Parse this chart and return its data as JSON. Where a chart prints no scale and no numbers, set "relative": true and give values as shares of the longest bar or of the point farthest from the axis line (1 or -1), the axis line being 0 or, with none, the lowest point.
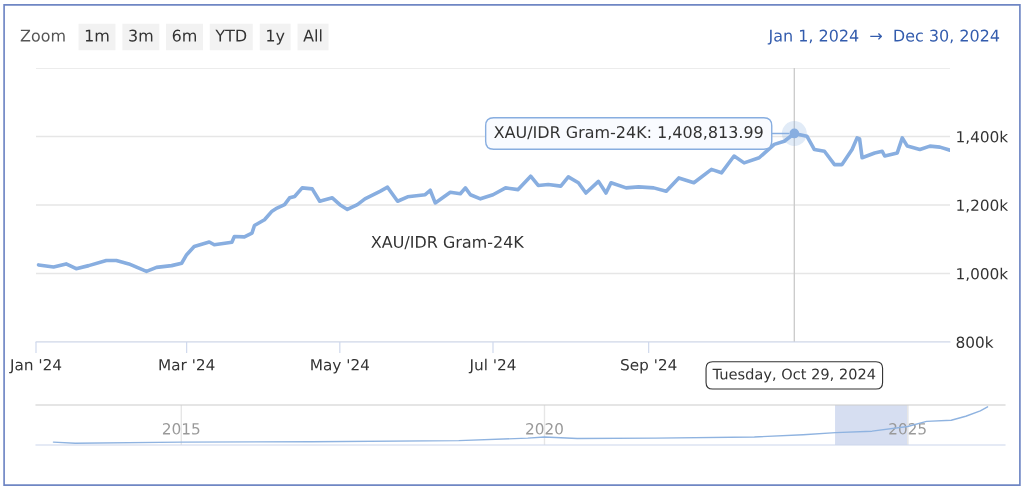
{
  "chart_data": [
    {
      "type": "line",
      "annotations": [
        "Zoom",
        "1m",
        "3m",
        "6m",
        "YTD",
        "1y",
        "All",
        "Jan 1, 2024  →  Dec 30, 2024",
        {
          "text": "XAU/IDR Gram-24K: 1,408,813.99",
          "x": "2024-10-29",
          "y": 1408813.99
        }
      ],
      "x": [
        "2024-01-02",
        "2024-01-08",
        "2024-01-13",
        "2024-01-17",
        "2024-01-22",
        "2024-01-29",
        "2024-02-02",
        "2024-02-07",
        "2024-02-14",
        "2024-02-18",
        "2024-02-24",
        "2024-02-28",
        "2024-03-01",
        "2024-03-04",
        "2024-03-10",
        "2024-03-12",
        "2024-03-19",
        "2024-03-20",
        "2024-03-24",
        "2024-03-27",
        "2024-03-28",
        "2024-04-01",
        "2024-04-04",
        "2024-04-06",
        "2024-04-09",
        "2024-04-11",
        "2024-04-13",
        "2024-04-16",
        "2024-04-20",
        "2024-04-23",
        "2024-04-28",
        "2024-05-01",
        "2024-05-04",
        "2024-05-08",
        "2024-05-11",
        "2024-05-17",
        "2024-05-20",
        "2024-05-24",
        "2024-05-28",
        "2024-06-04",
        "2024-06-06",
        "2024-06-08",
        "2024-06-14",
        "2024-06-18",
        "2024-06-20",
        "2024-06-22",
        "2024-06-26",
        "2024-07-01",
        "2024-07-06",
        "2024-07-11",
        "2024-07-16",
        "2024-07-19",
        "2024-07-23",
        "2024-07-28",
        "2024-07-31",
        "2024-08-04",
        "2024-08-07",
        "2024-08-12",
        "2024-08-15",
        "2024-08-17",
        "2024-08-23",
        "2024-08-28",
        "2024-09-03",
        "2024-09-08",
        "2024-09-13",
        "2024-09-19",
        "2024-09-26",
        "2024-09-30",
        "2024-10-05",
        "2024-10-09",
        "2024-10-15",
        "2024-10-21",
        "2024-10-25",
        "2024-10-29",
        "2024-11-03",
        "2024-11-06",
        "2024-11-10",
        "2024-11-14",
        "2024-11-17",
        "2024-11-21",
        "2024-11-23",
        "2024-11-24",
        "2024-11-25",
        "2024-11-30",
        "2024-12-03",
        "2024-12-04",
        "2024-12-09",
        "2024-12-11",
        "2024-12-13",
        "2024-12-18",
        "2024-12-22",
        "2024-12-26",
        "2024-12-30"
      ],
      "series": [
        {
          "name": "XAU/IDR Gram-24K",
          "color": "#88aee0",
          "values": [
            1025000,
            1019000,
            1028000,
            1014000,
            1023000,
            1038000,
            1038000,
            1028000,
            1006000,
            1018000,
            1023000,
            1030000,
            1055000,
            1079000,
            1092000,
            1084000,
            1091000,
            1108000,
            1107000,
            1118000,
            1140000,
            1157000,
            1182000,
            1191000,
            1201000,
            1221000,
            1225000,
            1250000,
            1247000,
            1211000,
            1221000,
            1201000,
            1187000,
            1201000,
            1218000,
            1240000,
            1252000,
            1211000,
            1224000,
            1230000,
            1243000,
            1206000,
            1237000,
            1233000,
            1250000,
            1230000,
            1218000,
            1230000,
            1250000,
            1245000,
            1284000,
            1257000,
            1260000,
            1255000,
            1282000,
            1265000,
            1235000,
            1269000,
            1235000,
            1265000,
            1250000,
            1253000,
            1250000,
            1240000,
            1279000,
            1265000,
            1304000,
            1294000,
            1343000,
            1323000,
            1338000,
            1377000,
            1386000,
            1408813.99,
            1401000,
            1362000,
            1357000,
            1318000,
            1318000,
            1362000,
            1396000,
            1393000,
            1338000,
            1352000,
            1357000,
            1343000,
            1352000,
            1396000,
            1372000,
            1362000,
            1372000,
            1369000,
            1360000
          ]
        }
      ],
      "xlim": [
        "2024-01-01",
        "2024-12-30"
      ],
      "xticks": [
        {
          "value": "2024-01-01",
          "label": "Jan '24"
        },
        {
          "value": "2024-03-01",
          "label": "Mar '24"
        },
        {
          "value": "2024-05-01",
          "label": "May '24"
        },
        {
          "value": "2024-07-01",
          "label": "Jul '24"
        },
        {
          "value": "2024-09-01",
          "label": "Sep '24"
        }
      ],
      "ylim": [
        800000,
        1600000
      ],
      "yticks": [
        {
          "value": 800000,
          "label": "800k"
        },
        {
          "value": 1000000,
          "label": "1,000k"
        },
        {
          "value": 1200000,
          "label": "1,200k"
        },
        {
          "value": 1400000,
          "label": "1,400k"
        },
        {
          "value": 1600000,
          "label": null
        }
      ],
      "ref_lines": [
        {
          "axis": "x",
          "value": "2024-10-29",
          "label": "Tuesday, Oct 29, 2024",
          "color": "#cccccc"
        }
      ],
      "grid": "y"
    },
    {
      "type": "line",
      "relative": true,
      "x": [
        2013.24,
        2013.54,
        2015.0,
        2016.79,
        2018.82,
        2019.77,
        2020.0,
        2020.45,
        2021.53,
        2022.89,
        2023.56,
        2024.01,
        2024.51,
        2025.0,
        2025.26,
        2025.6,
        2025.8,
        2026.0,
        2026.1
      ],
      "series": [
        {
          "color": "#8fb3e0",
          "values": [
            0.03,
            0,
            0.03,
            0.04,
            0.07,
            0.14,
            0.17,
            0.13,
            0.14,
            0.17,
            0.23,
            0.29,
            0.33,
            0.46,
            0.6,
            0.63,
            0.74,
            0.89,
            1
          ]
        }
      ],
      "xlim": [
        2013.0,
        2026.34
      ],
      "xticks": [
        2015,
        2020,
        2025
      ],
      "bands": [
        {
          "axis": "x",
          "from": 2024.01,
          "to": 2025.0,
          "color": "#ccd6ee"
        }
      ],
      "grid": "x",
      "tick_labels": "x"
    }
  ]
}
